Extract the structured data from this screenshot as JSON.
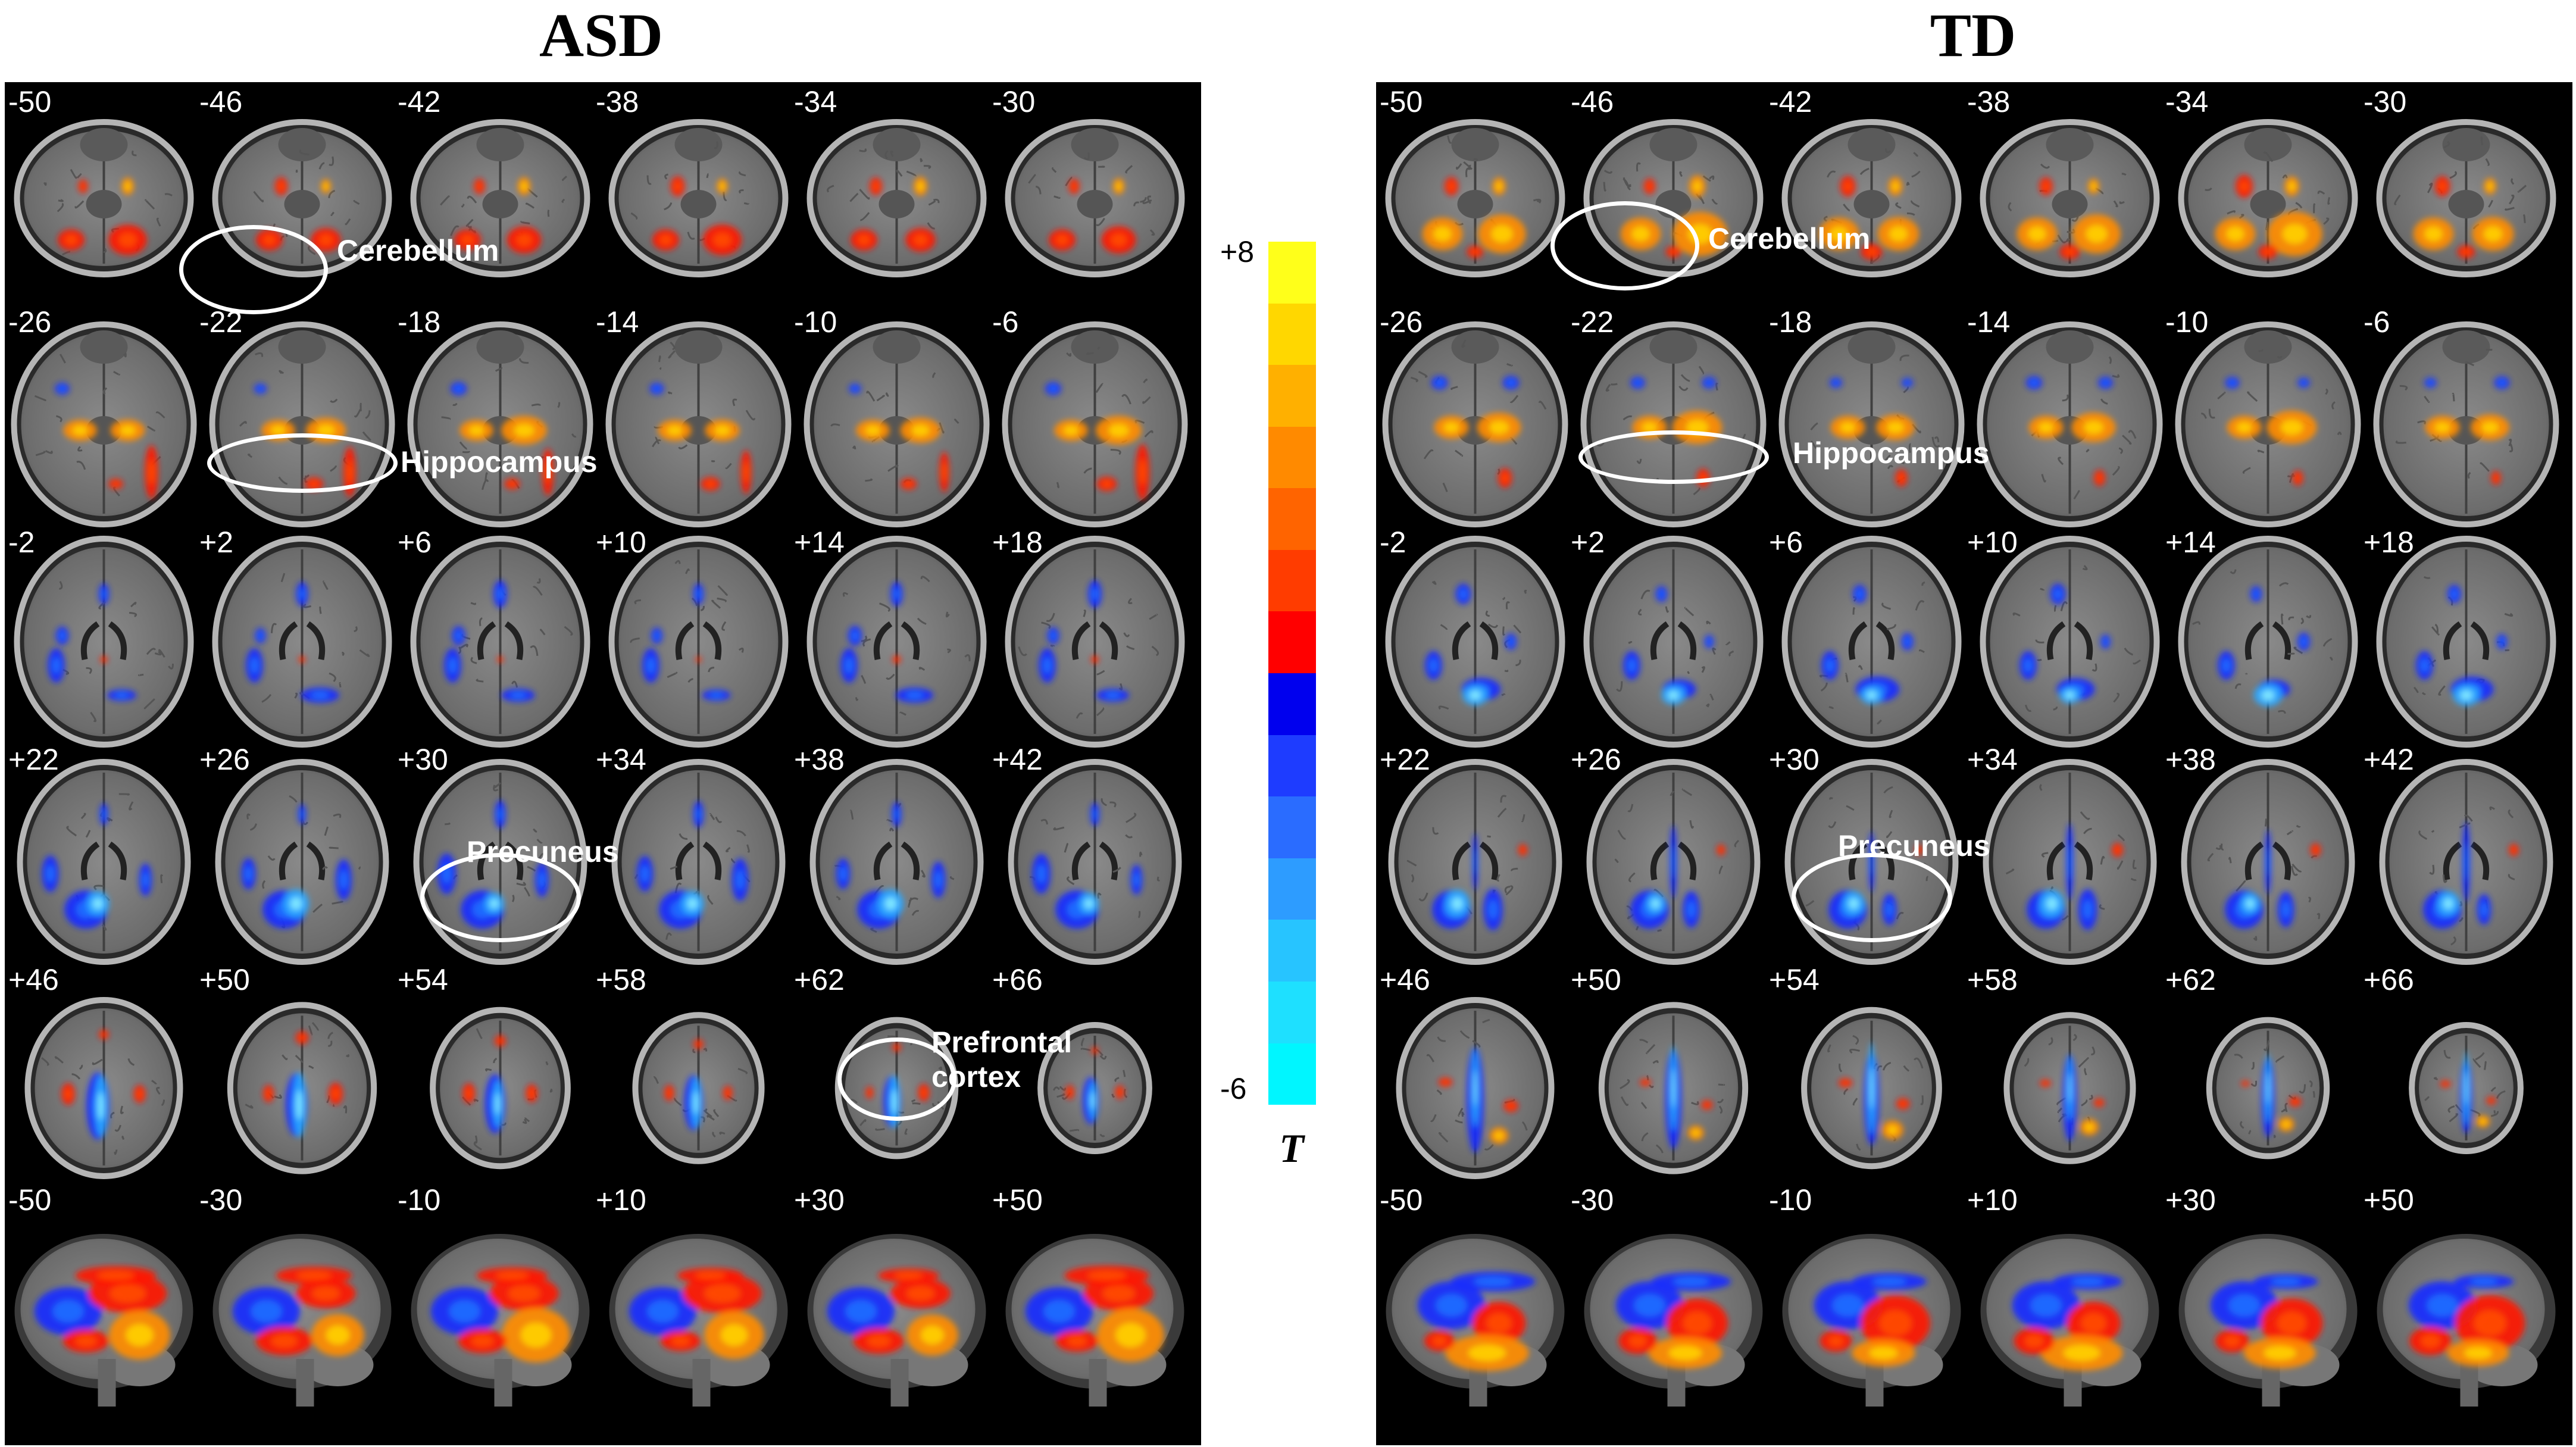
{
  "panels": [
    {
      "id": "asd",
      "title": "ASD",
      "rows": [
        [
          "-50",
          "-46",
          "-42",
          "-38",
          "-34",
          "-30"
        ],
        [
          "-26",
          "-22",
          "-18",
          "-14",
          "-10",
          "-6"
        ],
        [
          "-2",
          "+2",
          "+6",
          "+10",
          "+14",
          "+18"
        ],
        [
          "+22",
          "+26",
          "+30",
          "+34",
          "+38",
          "+42"
        ],
        [
          "+46",
          "+50",
          "+54",
          "+58",
          "+62",
          "+66"
        ],
        [
          "-50",
          "-30",
          "-10",
          "+10",
          "+30",
          "+50"
        ]
      ],
      "regions": [
        {
          "label": "Cerebellum"
        },
        {
          "label": "Hippocampus"
        },
        {
          "label": "Precuneus"
        },
        {
          "label": "Prefrontal\ncortex"
        }
      ]
    },
    {
      "id": "td",
      "title": "TD",
      "rows": [
        [
          "-50",
          "-46",
          "-42",
          "-38",
          "-34",
          "-30"
        ],
        [
          "-26",
          "-22",
          "-18",
          "-14",
          "-10",
          "-6"
        ],
        [
          "-2",
          "+2",
          "+6",
          "+10",
          "+14",
          "+18"
        ],
        [
          "+22",
          "+26",
          "+30",
          "+34",
          "+38",
          "+42"
        ],
        [
          "+46",
          "+50",
          "+54",
          "+58",
          "+62",
          "+66"
        ],
        [
          "-50",
          "-30",
          "-10",
          "+10",
          "+30",
          "+50"
        ]
      ],
      "regions": [
        {
          "label": "Cerebellum"
        },
        {
          "label": "Hippocampus"
        },
        {
          "label": "Precuneus"
        }
      ]
    }
  ],
  "colorbar": {
    "max_label": "+8",
    "min_label": "-6",
    "title": "T",
    "colors": [
      "#ffff1a",
      "#ffd700",
      "#ffb000",
      "#ff8a00",
      "#ff6400",
      "#ff3c00",
      "#ff0000",
      "#0000ee",
      "#1e3cff",
      "#2a6cff",
      "#2d9cff",
      "#27c4ff",
      "#1ee0ff",
      "#00f6ff"
    ]
  }
}
